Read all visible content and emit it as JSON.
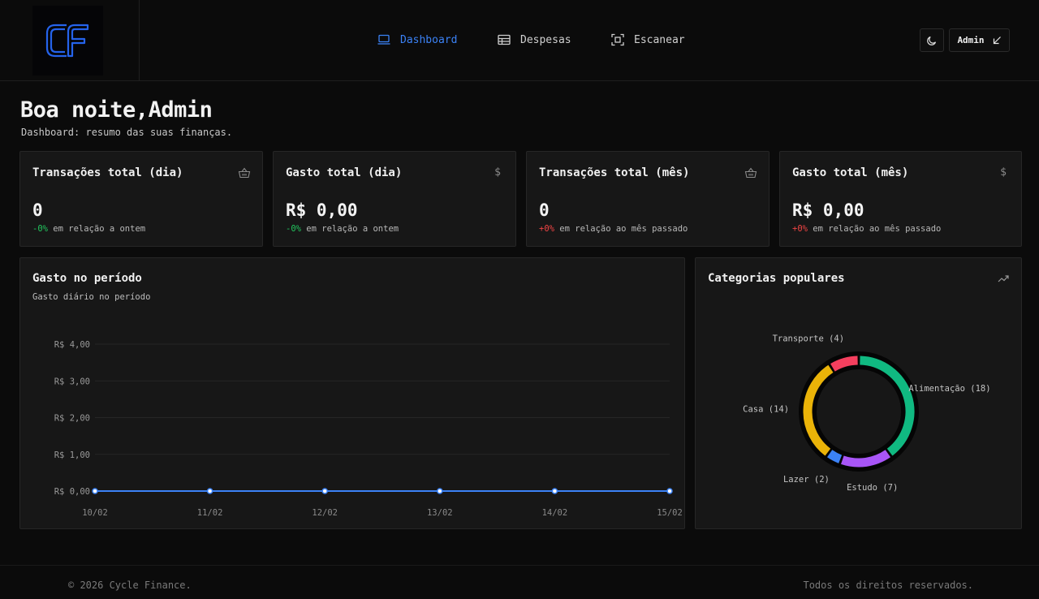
{
  "brand": {
    "logo_text": "CF"
  },
  "nav": [
    {
      "label": "Dashboard",
      "icon": "laptop-icon",
      "active": true
    },
    {
      "label": "Despesas",
      "icon": "table-icon",
      "active": false
    },
    {
      "label": "Escanear",
      "icon": "scan-icon",
      "active": false
    }
  ],
  "header": {
    "user_label": "Admin",
    "theme_icon": "moon-icon",
    "user_icon": "arrow-down-left-icon"
  },
  "greeting": {
    "prefix": "Boa noite,",
    "name": "Admin",
    "subtitle": "Dashboard: resumo das suas finanças."
  },
  "stats": [
    {
      "title": "Transações total (dia)",
      "icon": "basket-icon",
      "value": "0",
      "change": "-0%",
      "change_type": "positive",
      "comparison": "em relação a ontem"
    },
    {
      "title": "Gasto total (dia)",
      "icon": "dollar-icon",
      "value": "R$ 0,00",
      "change": "-0%",
      "change_type": "positive",
      "comparison": "em relação a ontem"
    },
    {
      "title": "Transações total (mês)",
      "icon": "basket-icon",
      "value": "0",
      "change": "+0%",
      "change_type": "negative",
      "comparison": "em relação ao mês passado"
    },
    {
      "title": "Gasto total (mês)",
      "icon": "dollar-icon",
      "value": "R$ 0,00",
      "change": "+0%",
      "change_type": "negative",
      "comparison": "em relação ao mês passado"
    }
  ],
  "spend_panel": {
    "title": "Gasto no período",
    "subtitle": "Gasto diário no período"
  },
  "categories_panel": {
    "title": "Categorias populares",
    "icon": "trending-up-icon"
  },
  "chart_data": [
    {
      "type": "line",
      "title": "Gasto no período",
      "subtitle": "Gasto diário no período",
      "x": [
        "10/02",
        "11/02",
        "12/02",
        "13/02",
        "14/02",
        "15/02"
      ],
      "y_ticks": [
        "R$ 0,00",
        "R$ 1,00",
        "R$ 2,00",
        "R$ 3,00",
        "R$ 4,00"
      ],
      "ylim": [
        0,
        4
      ],
      "series": [
        {
          "values": [
            0,
            0,
            0,
            0,
            0,
            0
          ],
          "color": "#3b82f6"
        }
      ],
      "grid": true
    },
    {
      "type": "pie",
      "title": "Categorias populares",
      "slices": [
        {
          "label": "Alimentação",
          "value": 18,
          "display": "Alimentação (18)",
          "color": "#10b981"
        },
        {
          "label": "Estudo",
          "value": 7,
          "display": "Estudo (7)",
          "color": "#a855f7"
        },
        {
          "label": "Lazer",
          "value": 2,
          "display": "Lazer (2)",
          "color": "#3b82f6"
        },
        {
          "label": "Casa",
          "value": 14,
          "display": "Casa (14)",
          "color": "#eab308"
        },
        {
          "label": "Transporte",
          "value": 4,
          "display": "Transporte (4)",
          "color": "#f43f5e"
        }
      ]
    }
  ],
  "footer": {
    "copyright": "© 2026 Cycle Finance.",
    "rights": "Todos os direitos reservados."
  }
}
